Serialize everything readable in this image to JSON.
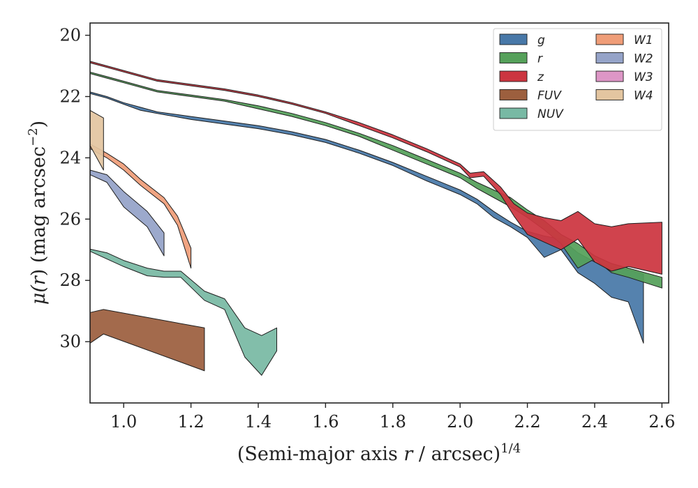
{
  "chart_data": {
    "type": "area",
    "title": "",
    "xlabel": {
      "prefix": "(Semi-major axis ",
      "var": "r",
      "mid": " / arcsec)",
      "sup": "1/4"
    },
    "ylabel": {
      "prefix": "μ(",
      "var": "r",
      "mid": ") (mag arcsec",
      "sup": "−2",
      "suffix": ")"
    },
    "xlim": [
      0.9,
      2.62
    ],
    "ylim": [
      32.0,
      19.6
    ],
    "y_inverted": true,
    "xticks": [
      1.0,
      1.2,
      1.4,
      1.6,
      1.8,
      2.0,
      2.2,
      2.4,
      2.6
    ],
    "xtick_labels": [
      "1.0",
      "1.2",
      "1.4",
      "1.6",
      "1.8",
      "2.0",
      "2.2",
      "2.4",
      "2.6"
    ],
    "yticks": [
      20,
      22,
      24,
      26,
      28,
      30
    ],
    "ytick_labels": [
      "20",
      "22",
      "24",
      "26",
      "28",
      "30"
    ],
    "grid": false,
    "legend_position": "top-right",
    "legend_columns": 2,
    "series": [
      {
        "name": "g",
        "color": "#4878a8",
        "x": [
          0.9,
          0.95,
          1.0,
          1.05,
          1.1,
          1.2,
          1.3,
          1.4,
          1.5,
          1.6,
          1.7,
          1.8,
          1.9,
          2.0,
          2.05,
          2.1,
          2.15,
          2.2,
          2.25,
          2.3,
          2.35,
          2.4,
          2.45,
          2.5,
          2.545
        ],
        "lower": [
          21.85,
          22.0,
          22.2,
          22.35,
          22.5,
          22.65,
          22.8,
          22.95,
          23.15,
          23.4,
          23.75,
          24.15,
          24.6,
          25.05,
          25.35,
          25.75,
          26.1,
          26.4,
          26.55,
          26.65,
          27.1,
          27.4,
          27.6,
          27.65,
          27.8
        ],
        "upper": [
          21.9,
          22.05,
          22.25,
          22.45,
          22.55,
          22.75,
          22.9,
          23.05,
          23.25,
          23.5,
          23.85,
          24.25,
          24.75,
          25.2,
          25.5,
          25.95,
          26.25,
          26.6,
          27.25,
          27.0,
          27.75,
          28.1,
          28.55,
          28.7,
          30.05
        ]
      },
      {
        "name": "r",
        "color": "#55a05a",
        "x": [
          0.9,
          0.95,
          1.0,
          1.05,
          1.1,
          1.2,
          1.3,
          1.4,
          1.5,
          1.6,
          1.7,
          1.8,
          1.9,
          2.0,
          2.05,
          2.1,
          2.15,
          2.2,
          2.25,
          2.3,
          2.35,
          2.4,
          2.45,
          2.5,
          2.6
        ],
        "lower": [
          21.2,
          21.35,
          21.5,
          21.65,
          21.8,
          21.95,
          22.1,
          22.3,
          22.55,
          22.85,
          23.2,
          23.6,
          24.05,
          24.5,
          24.8,
          25.05,
          25.3,
          25.7,
          26.05,
          26.5,
          26.8,
          27.2,
          27.45,
          27.6,
          27.9
        ],
        "upper": [
          21.25,
          21.4,
          21.55,
          21.7,
          21.85,
          22.0,
          22.15,
          22.4,
          22.65,
          22.95,
          23.3,
          23.75,
          24.2,
          24.65,
          25.0,
          25.3,
          25.6,
          25.95,
          26.35,
          26.8,
          27.6,
          27.3,
          27.75,
          27.9,
          28.25
        ]
      },
      {
        "name": "z",
        "color": "#cc3540",
        "x": [
          0.9,
          0.95,
          1.0,
          1.05,
          1.1,
          1.2,
          1.3,
          1.4,
          1.5,
          1.6,
          1.7,
          1.8,
          1.9,
          2.0,
          2.03,
          2.07,
          2.12,
          2.16,
          2.2,
          2.25,
          2.3,
          2.35,
          2.4,
          2.45,
          2.5,
          2.6
        ],
        "lower": [
          20.85,
          21.0,
          21.15,
          21.3,
          21.45,
          21.6,
          21.75,
          21.95,
          22.2,
          22.5,
          22.85,
          23.25,
          23.7,
          24.2,
          24.5,
          24.45,
          24.95,
          25.5,
          25.8,
          25.95,
          26.05,
          25.75,
          26.15,
          26.25,
          26.15,
          26.1
        ],
        "upper": [
          20.9,
          21.05,
          21.2,
          21.35,
          21.5,
          21.65,
          21.8,
          22.0,
          22.25,
          22.55,
          22.95,
          23.35,
          23.8,
          24.3,
          24.65,
          24.6,
          25.2,
          25.9,
          26.5,
          26.75,
          27.0,
          26.65,
          27.4,
          27.7,
          27.55,
          27.8
        ]
      },
      {
        "name": "FUV",
        "color": "#9c5f3e",
        "x": [
          0.9,
          0.94,
          1.24
        ],
        "lower": [
          29.05,
          28.95,
          29.55
        ],
        "upper": [
          30.05,
          29.75,
          30.95
        ]
      },
      {
        "name": "NUV",
        "color": "#78b9a4",
        "x": [
          0.9,
          0.95,
          1.0,
          1.07,
          1.12,
          1.17,
          1.24,
          1.3,
          1.36,
          1.41,
          1.455
        ],
        "lower": [
          26.98,
          27.1,
          27.35,
          27.6,
          27.7,
          27.7,
          28.35,
          28.6,
          29.55,
          29.8,
          29.55
        ],
        "upper": [
          27.05,
          27.3,
          27.55,
          27.85,
          27.9,
          27.9,
          28.65,
          28.95,
          30.5,
          31.1,
          30.3
        ]
      },
      {
        "name": "W1",
        "color": "#ef9d78",
        "x": [
          0.9,
          0.95,
          1.0,
          1.05,
          1.12,
          1.16,
          1.2
        ],
        "lower": [
          23.55,
          23.85,
          24.2,
          24.7,
          25.3,
          25.9,
          26.95
        ],
        "upper": [
          23.7,
          24.0,
          24.4,
          24.9,
          25.5,
          26.2,
          27.6
        ]
      },
      {
        "name": "W2",
        "color": "#95a3c8",
        "x": [
          0.9,
          0.95,
          1.0,
          1.07,
          1.12
        ],
        "lower": [
          24.4,
          24.55,
          25.1,
          25.75,
          26.45
        ],
        "upper": [
          24.55,
          24.8,
          25.6,
          26.25,
          27.2
        ]
      },
      {
        "name": "W3",
        "color": "#dd96c6",
        "x": [],
        "lower": [],
        "upper": []
      },
      {
        "name": "W4",
        "color": "#e3c5a0",
        "x": [
          0.9,
          0.94
        ],
        "lower": [
          22.45,
          22.7
        ],
        "upper": [
          23.6,
          24.4
        ]
      }
    ]
  }
}
